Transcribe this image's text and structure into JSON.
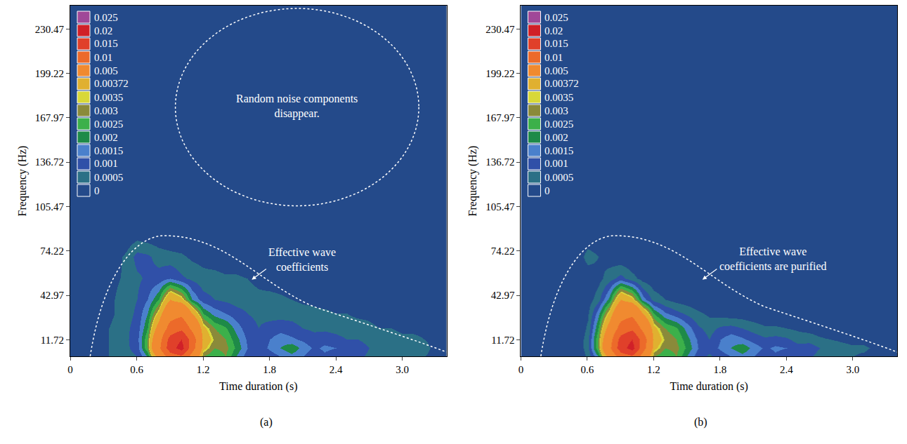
{
  "chart_data": [
    {
      "type": "contour",
      "panel": "(a)",
      "x_label": "Time duration (s)",
      "y_label": "Frequency (Hz)",
      "xlim": [
        0,
        3.4
      ],
      "ylim": [
        0,
        247
      ],
      "xticks": [
        0,
        0.6,
        1.2,
        1.8,
        2.4,
        {
          "value": 3,
          "label": "3.0"
        }
      ],
      "yticks": [
        11.72,
        42.97,
        74.22,
        105.47,
        136.72,
        167.97,
        199.22,
        230.47
      ],
      "annotations": [
        "Random noise components disappear.",
        "Effective wave coefficients"
      ],
      "levels": [
        0,
        0.0005,
        0.001,
        0.0015,
        0.002,
        0.0025,
        0.003,
        0.0035,
        0.00372,
        0.005,
        0.01,
        0.015,
        0.02,
        0.025
      ],
      "colors": [
        "#244a8a",
        "#2b7086",
        "#3050a8",
        "#4a80cc",
        "#1e8a48",
        "#3cb04a",
        "#8a8a3a",
        "#d8d838",
        "#e0b030",
        "#f08a30",
        "#ec6a2a",
        "#e0402a",
        "#d02028",
        "#a04898"
      ],
      "x": [
        0,
        0.1,
        0.2,
        0.3,
        0.4,
        0.5,
        0.6,
        0.7,
        0.8,
        0.9,
        1.0,
        1.1,
        1.2,
        1.3,
        1.4,
        1.5,
        1.6,
        1.7,
        1.8,
        1.9,
        2.0,
        2.1,
        2.2,
        2.3,
        2.4,
        2.5,
        2.6,
        2.7,
        2.8,
        2.9,
        3.0,
        3.1,
        3.2,
        3.3,
        3.4
      ],
      "y": [
        0,
        6,
        12,
        20,
        30,
        40,
        55,
        70,
        85,
        110,
        247
      ],
      "z": [
        [
          0,
          0,
          0.0002,
          0.0004,
          0.0006,
          0.0008,
          0.001,
          0.002,
          0.006,
          0.012,
          0.014,
          0.008,
          0.003,
          0.0025,
          0.003,
          0.002,
          0.0012,
          0.001,
          0.0012,
          0.0015,
          0.0018,
          0.0015,
          0.0012,
          0.0014,
          0.0012,
          0.001,
          0.0011,
          0.0009,
          0.0008,
          0.0007,
          0.0006,
          0.0006,
          0.0005,
          0.0004,
          0.0003
        ],
        [
          0,
          0,
          0.0002,
          0.0004,
          0.0006,
          0.0009,
          0.0012,
          0.003,
          0.009,
          0.018,
          0.022,
          0.012,
          0.004,
          0.003,
          0.0032,
          0.0024,
          0.0015,
          0.0012,
          0.0016,
          0.002,
          0.0024,
          0.0018,
          0.0014,
          0.0016,
          0.0015,
          0.0012,
          0.0013,
          0.001,
          0.0009,
          0.0008,
          0.0007,
          0.0007,
          0.0006,
          0.0004,
          0.0003
        ],
        [
          0,
          0,
          0.0002,
          0.0004,
          0.0006,
          0.0009,
          0.0013,
          0.003,
          0.008,
          0.017,
          0.02,
          0.013,
          0.0045,
          0.0034,
          0.003,
          0.0022,
          0.0014,
          0.0011,
          0.0015,
          0.0018,
          0.0016,
          0.0014,
          0.0012,
          0.0013,
          0.0012,
          0.001,
          0.001,
          0.0008,
          0.0007,
          0.0007,
          0.0006,
          0.0006,
          0.0005,
          0.0004,
          0.0003
        ],
        [
          0,
          0,
          0.0002,
          0.0004,
          0.0006,
          0.0009,
          0.0012,
          0.0025,
          0.006,
          0.012,
          0.014,
          0.009,
          0.004,
          0.003,
          0.0026,
          0.0018,
          0.0012,
          0.001,
          0.0012,
          0.0013,
          0.0012,
          0.001,
          0.0009,
          0.0009,
          0.0008,
          0.0007,
          0.0007,
          0.0006,
          0.0005,
          0.0005,
          0.0004,
          0.0004,
          0.0004,
          0.0003,
          0.0002
        ],
        [
          0,
          0,
          0.0001,
          0.0003,
          0.0005,
          0.0008,
          0.0011,
          0.002,
          0.004,
          0.008,
          0.009,
          0.005,
          0.0025,
          0.0018,
          0.0015,
          0.0012,
          0.001,
          0.0009,
          0.0008,
          0.0008,
          0.0008,
          0.0007,
          0.0006,
          0.0006,
          0.0005,
          0.0005,
          0.0004,
          0.0004,
          0.0003,
          0.0003,
          0.0003,
          0.0002,
          0.0002,
          0.0001,
          0.0001
        ],
        [
          0,
          0,
          0.0001,
          0.0003,
          0.0005,
          0.0008,
          0.001,
          0.0015,
          0.0025,
          0.005,
          0.004,
          0.002,
          0.0012,
          0.001,
          0.0009,
          0.0008,
          0.0008,
          0.0007,
          0.0007,
          0.0006,
          0.0005,
          0.0004,
          0.0004,
          0.0003,
          0.0003,
          0.0002,
          0.0002,
          0.0002,
          0.0002,
          0.0001,
          0.0001,
          0.0001,
          0.0001,
          0,
          0
        ],
        [
          0,
          0,
          0.0001,
          0.0002,
          0.0004,
          0.0006,
          0.0009,
          0.0011,
          0.0012,
          0.0015,
          0.0011,
          0.0009,
          0.0007,
          0.0007,
          0.0006,
          0.0006,
          0.0005,
          0.0003,
          0.0002,
          0.0002,
          0.0001,
          0.0001,
          0.0001,
          0.0001,
          0,
          0,
          0,
          0,
          0,
          0,
          0,
          0,
          0,
          0,
          0
        ],
        [
          0,
          0,
          0,
          0.0001,
          0.0003,
          0.0006,
          0.0012,
          0.0011,
          0.0008,
          0.0007,
          0.0006,
          0.0004,
          0.0003,
          0.0002,
          0.0001,
          0.0001,
          0,
          0,
          0,
          0,
          0,
          0,
          0,
          0,
          0,
          0,
          0,
          0,
          0,
          0,
          0,
          0,
          0,
          0,
          0
        ],
        [
          0,
          0,
          0,
          0,
          0,
          0.0001,
          0.0003,
          0.0002,
          0.0001,
          0,
          0,
          0,
          0,
          0,
          0,
          0,
          0,
          0,
          0,
          0,
          0,
          0,
          0,
          0,
          0,
          0,
          0,
          0,
          0,
          0,
          0,
          0,
          0,
          0,
          0
        ],
        [
          0,
          0,
          0,
          0,
          0,
          0,
          0,
          0,
          0,
          0,
          0,
          0,
          0,
          0,
          0,
          0,
          0,
          0,
          0,
          0,
          0,
          0,
          0,
          0,
          0,
          0,
          0,
          0,
          0,
          0,
          0,
          0,
          0,
          0,
          0
        ],
        [
          0,
          0,
          0,
          0,
          0,
          0,
          0,
          0,
          0,
          0,
          0,
          0,
          0,
          0,
          0,
          0,
          0,
          0,
          0,
          0,
          0,
          0,
          0,
          0,
          0,
          0,
          0,
          0,
          0,
          0,
          0,
          0,
          0,
          0,
          0
        ]
      ]
    },
    {
      "type": "contour",
      "panel": "(b)",
      "x_label": "Time duration (s)",
      "y_label": "Frequency (Hz)",
      "xlim": [
        0,
        3.4
      ],
      "ylim": [
        0,
        247
      ],
      "xticks": [
        0,
        0.6,
        1.2,
        1.8,
        2.4,
        {
          "value": 3,
          "label": "3.0"
        }
      ],
      "yticks": [
        11.72,
        42.97,
        74.22,
        105.47,
        136.72,
        167.97,
        199.22,
        230.47
      ],
      "annotations": [
        "Effective wave coefficients are purified"
      ],
      "levels": [
        0,
        0.0005,
        0.001,
        0.0015,
        0.002,
        0.0025,
        0.003,
        0.0035,
        0.00372,
        0.005,
        0.01,
        0.015,
        0.02,
        0.025
      ],
      "colors": [
        "#244a8a",
        "#2b7086",
        "#3050a8",
        "#4a80cc",
        "#1e8a48",
        "#3cb04a",
        "#8a8a3a",
        "#d8d838",
        "#e0b030",
        "#f08a30",
        "#ec6a2a",
        "#e0402a",
        "#d02028",
        "#a04898"
      ],
      "x": [
        0,
        0.1,
        0.2,
        0.3,
        0.4,
        0.5,
        0.6,
        0.7,
        0.8,
        0.9,
        1.0,
        1.1,
        1.2,
        1.3,
        1.4,
        1.5,
        1.6,
        1.7,
        1.8,
        1.9,
        2.0,
        2.1,
        2.2,
        2.3,
        2.4,
        2.5,
        2.6,
        2.7,
        2.8,
        2.9,
        3.0,
        3.1,
        3.2,
        3.3,
        3.4
      ],
      "y": [
        0,
        6,
        12,
        20,
        30,
        40,
        55,
        70,
        85,
        110,
        247
      ],
      "z": [
        [
          0,
          0,
          0,
          0,
          0,
          0,
          0.0006,
          0.002,
          0.006,
          0.012,
          0.014,
          0.008,
          0.003,
          0.0025,
          0.003,
          0.002,
          0.0012,
          0.0009,
          0.0012,
          0.0015,
          0.0018,
          0.0015,
          0.0012,
          0.0014,
          0.0012,
          0.001,
          0.0011,
          0.0008,
          0.0007,
          0.0006,
          0.0005,
          0.0004,
          0.0003,
          0.0002,
          0
        ],
        [
          0,
          0,
          0,
          0,
          0,
          0,
          0.0008,
          0.003,
          0.009,
          0.018,
          0.022,
          0.012,
          0.004,
          0.003,
          0.0032,
          0.0024,
          0.0015,
          0.0012,
          0.0016,
          0.002,
          0.0024,
          0.0018,
          0.0014,
          0.0016,
          0.0015,
          0.0012,
          0.0013,
          0.001,
          0.0009,
          0.0007,
          0.0006,
          0.0006,
          0.0004,
          0.0002,
          0
        ],
        [
          0,
          0,
          0,
          0,
          0,
          0,
          0.0008,
          0.003,
          0.008,
          0.017,
          0.02,
          0.013,
          0.0045,
          0.0034,
          0.003,
          0.0022,
          0.0014,
          0.001,
          0.0015,
          0.0018,
          0.0016,
          0.0013,
          0.0011,
          0.0012,
          0.0011,
          0.0008,
          0.0008,
          0.0006,
          0.0005,
          0.0004,
          0.0003,
          0.0003,
          0.0002,
          0.0001,
          0
        ],
        [
          0,
          0,
          0,
          0,
          0,
          0,
          0.0006,
          0.0025,
          0.006,
          0.012,
          0.014,
          0.009,
          0.004,
          0.003,
          0.0026,
          0.0018,
          0.0011,
          0.0008,
          0.0011,
          0.0012,
          0.001,
          0.0008,
          0.0006,
          0.0006,
          0.0005,
          0.0004,
          0.0003,
          0.0002,
          0.0001,
          0,
          0,
          0,
          0,
          0,
          0
        ],
        [
          0,
          0,
          0,
          0,
          0,
          0,
          0.0004,
          0.0018,
          0.004,
          0.008,
          0.009,
          0.005,
          0.0025,
          0.0016,
          0.0012,
          0.0009,
          0.0006,
          0.0004,
          0.0003,
          0.0002,
          0.0002,
          0.0001,
          0,
          0,
          0,
          0,
          0,
          0,
          0,
          0,
          0,
          0,
          0,
          0,
          0
        ],
        [
          0,
          0,
          0,
          0,
          0,
          0,
          0.0002,
          0.0008,
          0.0022,
          0.005,
          0.004,
          0.0018,
          0.0008,
          0.0005,
          0.0003,
          0.0002,
          0.0001,
          0,
          0,
          0,
          0,
          0,
          0,
          0,
          0,
          0,
          0,
          0,
          0,
          0,
          0,
          0,
          0,
          0,
          0
        ],
        [
          0,
          0,
          0,
          0,
          0,
          0,
          0,
          0.0003,
          0.0008,
          0.0012,
          0.0007,
          0.0003,
          0.0001,
          0,
          0,
          0,
          0,
          0,
          0,
          0,
          0,
          0,
          0,
          0,
          0,
          0,
          0,
          0,
          0,
          0,
          0,
          0,
          0,
          0,
          0
        ],
        [
          0,
          0,
          0,
          0,
          0,
          0,
          0.0008,
          0.0005,
          0.0002,
          0.0001,
          0,
          0,
          0,
          0,
          0,
          0,
          0,
          0,
          0,
          0,
          0,
          0,
          0,
          0,
          0,
          0,
          0,
          0,
          0,
          0,
          0,
          0,
          0,
          0,
          0
        ],
        [
          0,
          0,
          0,
          0,
          0,
          0,
          0,
          0,
          0,
          0,
          0,
          0,
          0,
          0,
          0,
          0,
          0,
          0,
          0,
          0,
          0,
          0,
          0,
          0,
          0,
          0,
          0,
          0,
          0,
          0,
          0,
          0,
          0,
          0,
          0
        ],
        [
          0,
          0,
          0,
          0,
          0,
          0,
          0,
          0,
          0,
          0,
          0,
          0,
          0,
          0,
          0,
          0,
          0,
          0,
          0,
          0,
          0,
          0,
          0,
          0,
          0,
          0,
          0,
          0,
          0,
          0,
          0,
          0,
          0,
          0,
          0
        ],
        [
          0,
          0,
          0,
          0,
          0,
          0,
          0,
          0,
          0,
          0,
          0,
          0,
          0,
          0,
          0,
          0,
          0,
          0,
          0,
          0,
          0,
          0,
          0,
          0,
          0,
          0,
          0,
          0,
          0,
          0,
          0,
          0,
          0,
          0,
          0
        ]
      ]
    }
  ]
}
